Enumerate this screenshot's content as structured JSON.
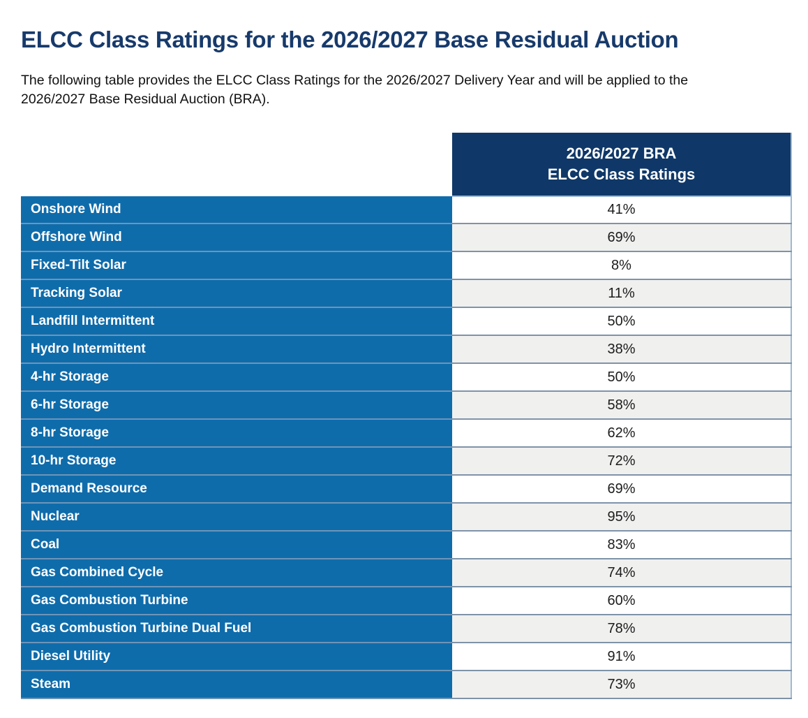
{
  "page": {
    "title": "ELCC Class Ratings for the 2026/2027 Base Residual Auction",
    "intro_lines": [
      "The following table provides the ELCC Class Ratings for the 2026/2027 Delivery Year and will be applied to the",
      "2026/2027 Base Residual Auction (BRA)."
    ]
  },
  "table": {
    "value_column_header": {
      "line1": "2026/2027 BRA",
      "line2": "ELCC Class Ratings"
    },
    "rows": [
      {
        "label": "Onshore Wind",
        "value": "41%"
      },
      {
        "label": "Offshore Wind",
        "value": "69%"
      },
      {
        "label": "Fixed-Tilt Solar",
        "value": "8%"
      },
      {
        "label": "Tracking Solar",
        "value": "11%"
      },
      {
        "label": "Landfill Intermittent",
        "value": "50%"
      },
      {
        "label": "Hydro Intermittent",
        "value": "38%"
      },
      {
        "label": "4-hr Storage",
        "value": "50%"
      },
      {
        "label": "6-hr Storage",
        "value": "58%"
      },
      {
        "label": "8-hr Storage",
        "value": "62%"
      },
      {
        "label": "10-hr Storage",
        "value": "72%"
      },
      {
        "label": "Demand Resource",
        "value": "69%"
      },
      {
        "label": "Nuclear",
        "value": "95%"
      },
      {
        "label": "Coal",
        "value": "83%"
      },
      {
        "label": "Gas Combined Cycle",
        "value": "74%"
      },
      {
        "label": "Gas Combustion Turbine",
        "value": "60%"
      },
      {
        "label": "Gas Combustion Turbine Dual Fuel",
        "value": "78%"
      },
      {
        "label": "Diesel Utility",
        "value": "91%"
      },
      {
        "label": "Steam",
        "value": "73%"
      }
    ]
  },
  "chart_data": {
    "type": "table",
    "title": "ELCC Class Ratings for the 2026/2027 Base Residual Auction",
    "categories": [
      "Onshore Wind",
      "Offshore Wind",
      "Fixed-Tilt Solar",
      "Tracking Solar",
      "Landfill Intermittent",
      "Hydro Intermittent",
      "4-hr Storage",
      "6-hr Storage",
      "8-hr Storage",
      "10-hr Storage",
      "Demand Resource",
      "Nuclear",
      "Coal",
      "Gas Combined Cycle",
      "Gas Combustion Turbine",
      "Gas Combustion Turbine Dual Fuel",
      "Diesel Utility",
      "Steam"
    ],
    "values_percent": [
      41,
      69,
      8,
      11,
      50,
      38,
      50,
      58,
      62,
      72,
      69,
      95,
      83,
      74,
      60,
      78,
      91,
      73
    ],
    "value_column_label": "2026/2027 BRA ELCC Class Ratings"
  },
  "colors": {
    "title_navy": "#173A6B",
    "header_navy": "#0F3868",
    "row_blue": "#0F6CAB",
    "alt_row_gray": "#F0F0EF",
    "grid_line": "#7F93A9",
    "header_edge": "#9DB9D4"
  }
}
